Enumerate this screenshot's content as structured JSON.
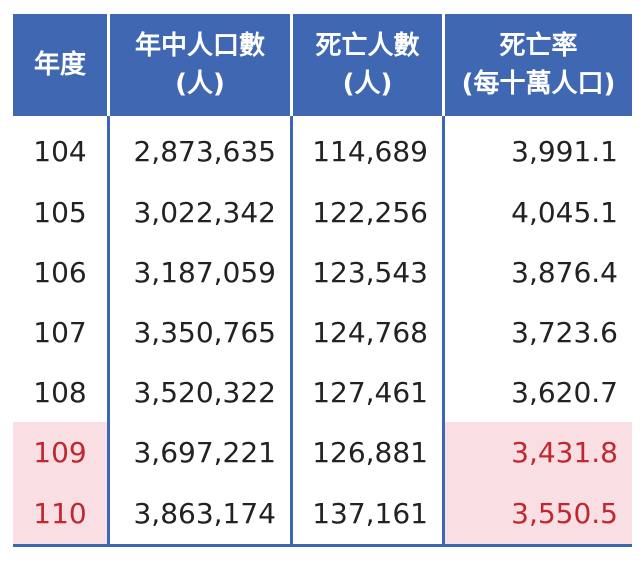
{
  "table": {
    "headers": [
      {
        "line1": "年度",
        "line2": ""
      },
      {
        "line1": "年中人口數",
        "line2": "(人)"
      },
      {
        "line1": "死亡人數",
        "line2": "(人)"
      },
      {
        "line1": "死亡率",
        "line2": "(每十萬人口)"
      }
    ],
    "rows": [
      {
        "year": "104",
        "population": "2,873,635",
        "deaths": "114,689",
        "rate": "3,991.1",
        "highlight": false
      },
      {
        "year": "105",
        "population": "3,022,342",
        "deaths": "122,256",
        "rate": "4,045.1",
        "highlight": false
      },
      {
        "year": "106",
        "population": "3,187,059",
        "deaths": "123,543",
        "rate": "3,876.4",
        "highlight": false
      },
      {
        "year": "107",
        "population": "3,350,765",
        "deaths": "124,768",
        "rate": "3,723.6",
        "highlight": false
      },
      {
        "year": "108",
        "population": "3,520,322",
        "deaths": "127,461",
        "rate": "3,620.7",
        "highlight": false
      },
      {
        "year": "109",
        "population": "3,697,221",
        "deaths": "126,881",
        "rate": "3,431.8",
        "highlight": true
      },
      {
        "year": "110",
        "population": "3,863,174",
        "deaths": "137,161",
        "rate": "3,550.5",
        "highlight": true
      }
    ]
  },
  "colors": {
    "header_bg": "#3f67b2",
    "header_text": "#ffffff",
    "rule": "#3a66b2",
    "highlight_bg": "#f9dfe3",
    "highlight_text": "#c0282f"
  }
}
